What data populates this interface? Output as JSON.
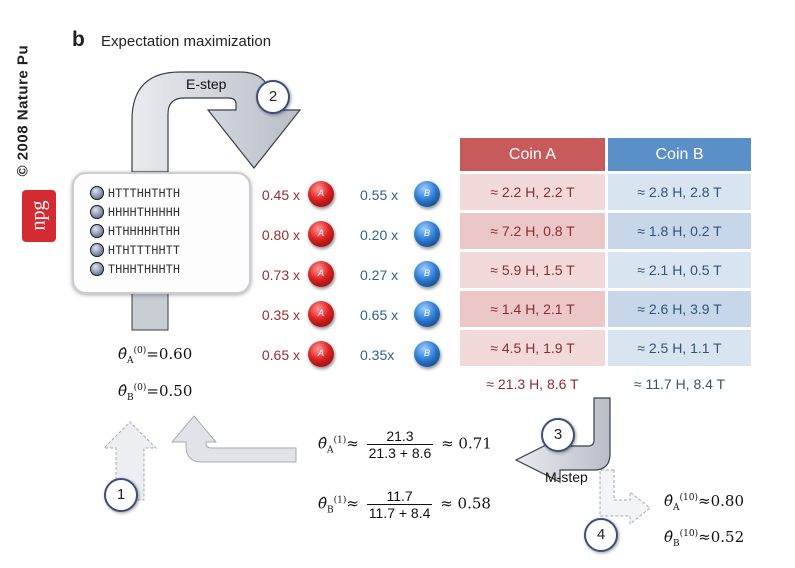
{
  "side_text": "© 2008 Nature Pu",
  "logo": "npg",
  "panel_letter": "b",
  "panel_title": "Expectation maximization",
  "e_step_label": "E-step",
  "m_step_label": "M-step",
  "step_numbers": [
    "1",
    "2",
    "3",
    "4"
  ],
  "sequences": [
    "HTTTHHTHTH",
    "HHHHTHHHHH",
    "HTHHHHHTHH",
    "HTHTTTHHTT",
    "THHHTHHHTH"
  ],
  "weights_A": [
    "0.45 x",
    "0.80 x",
    "0.73 x",
    "0.35 x",
    "0.65 x"
  ],
  "weights_B": [
    "0.55 x",
    "0.20 x",
    "0.27 x",
    "0.65 x",
    "0.35x"
  ],
  "coin_A_letter": "A",
  "coin_B_letter": "B",
  "table": {
    "header_A": "Coin A",
    "header_B": "Coin B",
    "rows_A": [
      "≈ 2.2 H, 2.2 T",
      "≈ 7.2 H, 0.8 T",
      "≈ 5.9 H, 1.5 T",
      "≈ 1.4 H, 2.1 T",
      "≈ 4.5 H, 1.9 T"
    ],
    "rows_B": [
      "≈ 2.8 H, 2.8 T",
      "≈ 1.8 H, 0.2 T",
      "≈ 2.1 H, 0.5 T",
      "≈ 2.6 H, 3.9 T",
      "≈ 2.5 H, 1.1 T"
    ],
    "total_A": "≈ 21.3 H, 8.6 T",
    "total_B": "≈ 11.7 H, 8.4 T"
  },
  "initial": {
    "thetaA_sup": "(0)",
    "thetaA_value": "=0.60",
    "thetaB_sup": "(0)",
    "thetaB_value": "=0.50"
  },
  "update": {
    "thetaA_sup": "(1)",
    "thetaA_num": "21.3",
    "thetaA_den": "21.3 + 8.6",
    "thetaA_result": "≈ 0.71",
    "thetaB_sup": "(1)",
    "thetaB_num": "11.7",
    "thetaB_den": "11.7 + 8.4",
    "thetaB_result": "≈ 0.58",
    "approx": "≈"
  },
  "final": {
    "thetaA_sup": "(10)",
    "thetaA_value": "≈0.80",
    "thetaB_sup": "(10)",
    "thetaB_value": "≈0.52"
  },
  "theta_symbol": "θ̂",
  "sub_A": "A",
  "sub_B": "B",
  "colors": {
    "coin_A": "#c75a5a",
    "coin_B": "#5b8fc7",
    "arrow_fill": "#d3d6dc",
    "arrow_stroke": "#3a3f4a"
  }
}
